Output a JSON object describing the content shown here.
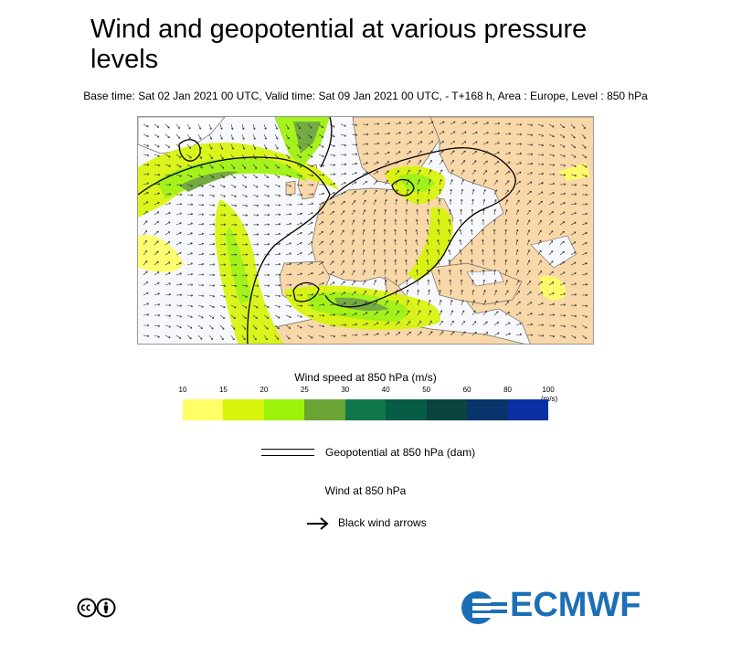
{
  "title": "Wind and geopotential at various pressure levels",
  "subtitle": "Base time: Sat 02 Jan 2021 00 UTC, Valid time: Sat 09 Jan 2021 00 UTC, - T+168 h, Area : Europe, Level : 850 hPa",
  "map": {
    "area": "Europe",
    "level": "850 hPa",
    "colors": {
      "land": "#f8d7a8",
      "sea": "#f7f8fb",
      "coast": "#555555",
      "contour": "#000000"
    }
  },
  "legend": {
    "title": "Wind speed at 850 hPa (m/s)",
    "unit": "(m/s)",
    "ticks": [
      "10",
      "15",
      "20",
      "25",
      "30",
      "40",
      "50",
      "60",
      "80",
      "100"
    ],
    "colors": [
      "#fefe66",
      "#d7f50a",
      "#9df20a",
      "#6aa434",
      "#11784e",
      "#075c45",
      "#0a4440",
      "#06346b",
      "#0a2fa4"
    ]
  },
  "geopotential_legend": {
    "label": "Geopotential at 850 hPa (dam)"
  },
  "wind_heading": "Wind at 850 hPa",
  "arrow_legend": {
    "label": "Black wind arrows"
  },
  "license_icon": "creative-commons-by-icon",
  "logo": {
    "text": "ECMWF",
    "color": "#1d6fb5"
  }
}
